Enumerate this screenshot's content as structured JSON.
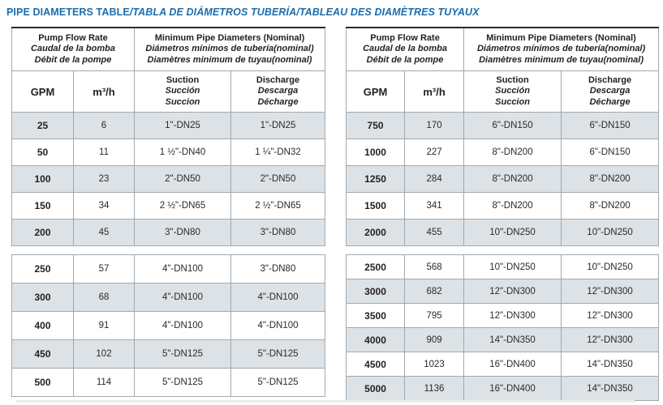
{
  "title": {
    "main": "PIPE DIAMETERS TABLE",
    "i18n": "/TABLA DE DIÁMETROS TUBERÍA/TABLEAU DES DIAMÈTRES TUYAUX"
  },
  "header": {
    "flow": [
      "Pump Flow Rate",
      "Caudal de la bomba",
      "Débit de la pompe"
    ],
    "diam": [
      "Minimum Pipe Diameters (Nominal)",
      "Diámetros mínimos de tubería(nominal)",
      "Diamètres minimum de tuyau(nominal)"
    ],
    "gpm": "GPM",
    "m3h": "m³/h",
    "suction": [
      "Suction",
      "Succión",
      "Succion"
    ],
    "discharge": [
      "Discharge",
      "Descarga",
      "Décharge"
    ]
  },
  "tables": [
    {
      "blocks": [
        [
          [
            "25",
            "6",
            "1\"-DN25",
            "1\"-DN25"
          ],
          [
            "50",
            "11",
            "1 ½\"-DN40",
            "1 ¼\"-DN32"
          ],
          [
            "100",
            "23",
            "2\"-DN50",
            "2\"-DN50"
          ],
          [
            "150",
            "34",
            "2 ½\"-DN65",
            "2 ½\"-DN65"
          ],
          [
            "200",
            "45",
            "3\"-DN80",
            "3\"-DN80"
          ]
        ],
        [
          [
            "250",
            "57",
            "4\"-DN100",
            "3\"-DN80"
          ],
          [
            "300",
            "68",
            "4\"-DN100",
            "4\"-DN100"
          ],
          [
            "400",
            "91",
            "4\"-DN100",
            "4\"-DN100"
          ],
          [
            "450",
            "102",
            "5\"-DN125",
            "5\"-DN125"
          ],
          [
            "500",
            "114",
            "5\"-DN125",
            "5\"-DN125"
          ]
        ]
      ]
    },
    {
      "blocks": [
        [
          [
            "750",
            "170",
            "6\"-DN150",
            "6\"-DN150"
          ],
          [
            "1000",
            "227",
            "8\"-DN200",
            "6\"-DN150"
          ],
          [
            "1250",
            "284",
            "8\"-DN200",
            "8\"-DN200"
          ],
          [
            "1500",
            "341",
            "8\"-DN200",
            "8\"-DN200"
          ],
          [
            "2000",
            "455",
            "10\"-DN250",
            "10\"-DN250"
          ]
        ],
        [
          [
            "2500",
            "568",
            "10\"-DN250",
            "10\"-DN250"
          ],
          [
            "3000",
            "682",
            "12\"-DN300",
            "12\"-DN300"
          ],
          [
            "3500",
            "795",
            "12\"-DN300",
            "12\"-DN300"
          ],
          [
            "4000",
            "909",
            "14\"-DN350",
            "12\"-DN300"
          ],
          [
            "4500",
            "1023",
            "16\"-DN400",
            "14\"-DN350"
          ],
          [
            "5000",
            "1136",
            "16\"-DN400",
            "14\"-DN350"
          ]
        ]
      ]
    }
  ],
  "colors": {
    "title_blue": "#1b6dad",
    "row_shade": "#dde2e6",
    "border_gray": "#a3a8ad",
    "top_border_dark": "#2b2b2b",
    "text": "#231f20"
  }
}
